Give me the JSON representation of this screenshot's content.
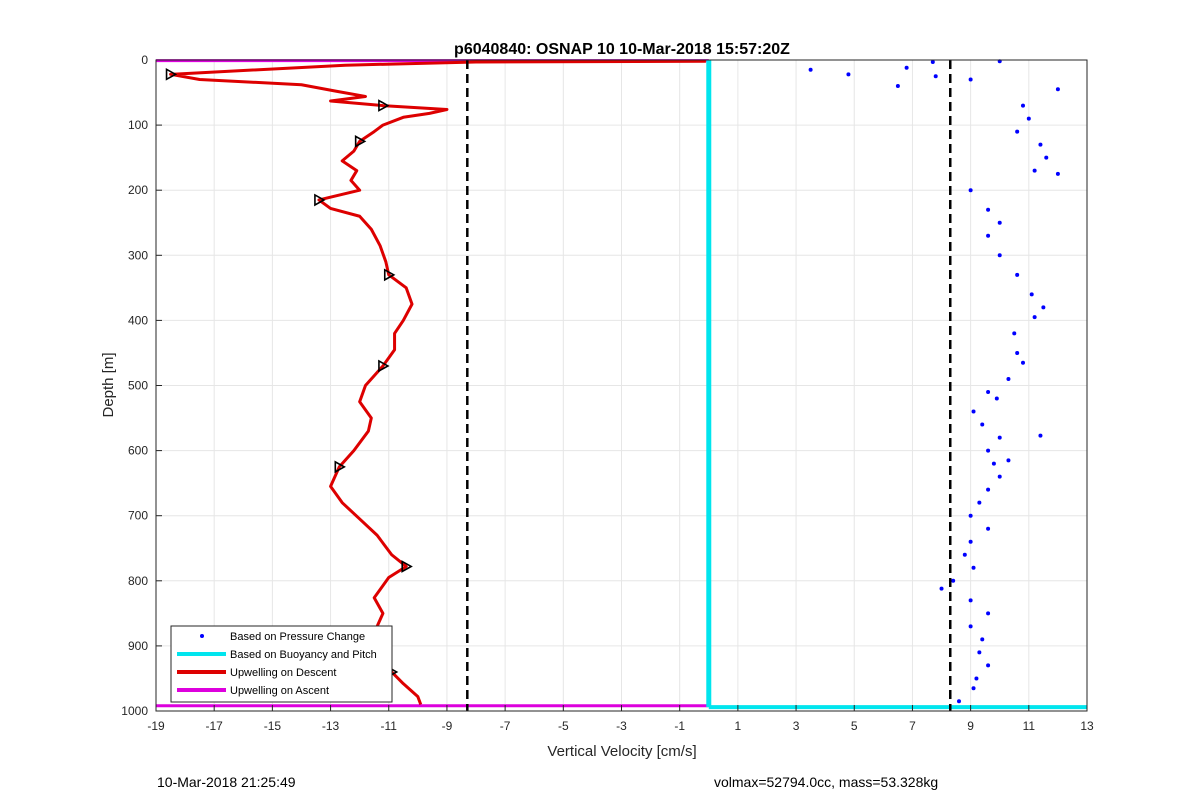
{
  "chart_data": {
    "type": "scatter",
    "title": "p6040840: OSNAP 10 10-Mar-2018 15:57:20Z",
    "xlabel": "Vertical Velocity [cm/s]",
    "ylabel": "Depth [m]",
    "xlim": [
      -19,
      13
    ],
    "ylim": [
      0,
      1000
    ],
    "y_reversed": true,
    "grid": true,
    "x_ticks": [
      -19,
      -17,
      -15,
      -13,
      -11,
      -9,
      -7,
      -5,
      -3,
      -1,
      1,
      3,
      5,
      7,
      9,
      11,
      13
    ],
    "x_tick_labels": [
      "-19",
      "-17",
      "-15",
      "-13",
      "-11",
      "-9",
      "-7",
      "-5",
      "-3",
      "-1",
      "1",
      "3",
      "5",
      "7",
      "9",
      "11",
      "13"
    ],
    "y_ticks": [
      0,
      100,
      200,
      300,
      400,
      500,
      600,
      700,
      800,
      900,
      1000
    ],
    "y_tick_labels": [
      "0",
      "100",
      "200",
      "300",
      "400",
      "500",
      "600",
      "700",
      "800",
      "900",
      "1000"
    ],
    "legend": {
      "placement": "bottom-left",
      "entries": [
        {
          "label": "Based on Pressure Change",
          "color": "#0000ff",
          "marker": "dot"
        },
        {
          "label": "Based on Buoyancy and Pitch",
          "color": "#00e5ee",
          "marker": "line"
        },
        {
          "label": "Upwelling on Descent",
          "color": "#dd0000",
          "marker": "line"
        },
        {
          "label": "Upwelling on Ascent",
          "color": "#dd00dd",
          "marker": "line"
        }
      ]
    },
    "reference_lines": [
      {
        "x": -8.3,
        "style": "dashed",
        "color": "#000000"
      },
      {
        "x": 8.3,
        "style": "dashed",
        "color": "#000000"
      }
    ],
    "series": [
      {
        "name": "Upwelling on Descent",
        "color": "#dd0000",
        "points": [
          [
            -0.1,
            2
          ],
          [
            -8.0,
            3
          ],
          [
            -12.5,
            8
          ],
          [
            -18.5,
            22
          ],
          [
            -17.5,
            30
          ],
          [
            -14.0,
            38
          ],
          [
            -12.8,
            48
          ],
          [
            -11.8,
            56
          ],
          [
            -13.0,
            63
          ],
          [
            -11.2,
            70
          ],
          [
            -9.0,
            76
          ],
          [
            -9.6,
            82
          ],
          [
            -10.5,
            88
          ],
          [
            -11.2,
            100
          ],
          [
            -11.5,
            110
          ],
          [
            -12.0,
            125
          ],
          [
            -12.2,
            140
          ],
          [
            -12.6,
            155
          ],
          [
            -12.1,
            170
          ],
          [
            -12.3,
            185
          ],
          [
            -12.0,
            200
          ],
          [
            -13.4,
            215
          ],
          [
            -13.0,
            228
          ],
          [
            -12.0,
            240
          ],
          [
            -11.6,
            260
          ],
          [
            -11.3,
            285
          ],
          [
            -11.1,
            310
          ],
          [
            -11.0,
            330
          ],
          [
            -10.4,
            350
          ],
          [
            -10.2,
            375
          ],
          [
            -10.5,
            400
          ],
          [
            -10.8,
            420
          ],
          [
            -10.8,
            445
          ],
          [
            -11.2,
            470
          ],
          [
            -11.8,
            500
          ],
          [
            -12.0,
            525
          ],
          [
            -11.6,
            550
          ],
          [
            -11.7,
            570
          ],
          [
            -12.2,
            600
          ],
          [
            -12.7,
            625
          ],
          [
            -13.0,
            655
          ],
          [
            -12.6,
            680
          ],
          [
            -12.0,
            705
          ],
          [
            -11.4,
            730
          ],
          [
            -10.9,
            760
          ],
          [
            -10.4,
            778
          ],
          [
            -11.0,
            795
          ],
          [
            -11.5,
            826
          ],
          [
            -11.2,
            850
          ],
          [
            -11.5,
            880
          ],
          [
            -11.0,
            915
          ],
          [
            -10.9,
            940
          ],
          [
            -10.5,
            958
          ],
          [
            -10.0,
            978
          ],
          [
            -9.9,
            990
          ]
        ]
      },
      {
        "name": "Based on Pressure Change",
        "color": "#0000ff",
        "points": [
          [
            10.8,
            70
          ],
          [
            11.0,
            90
          ],
          [
            10.6,
            110
          ],
          [
            11.4,
            130
          ],
          [
            11.6,
            150
          ],
          [
            11.2,
            170
          ],
          [
            12.0,
            175
          ],
          [
            9.0,
            200
          ],
          [
            9.6,
            230
          ],
          [
            10.0,
            250
          ],
          [
            9.6,
            270
          ],
          [
            10.0,
            300
          ],
          [
            10.6,
            330
          ],
          [
            11.1,
            360
          ],
          [
            11.5,
            380
          ],
          [
            11.2,
            395
          ],
          [
            10.5,
            420
          ],
          [
            10.6,
            450
          ],
          [
            10.8,
            465
          ],
          [
            10.3,
            490
          ],
          [
            9.6,
            510
          ],
          [
            9.9,
            520
          ],
          [
            9.1,
            540
          ],
          [
            9.4,
            560
          ],
          [
            10.0,
            580
          ],
          [
            11.4,
            577
          ],
          [
            9.6,
            600
          ],
          [
            10.3,
            615
          ],
          [
            9.8,
            620
          ],
          [
            10.0,
            640
          ],
          [
            9.6,
            660
          ],
          [
            9.3,
            680
          ],
          [
            9.0,
            700
          ],
          [
            9.6,
            720
          ],
          [
            9.0,
            740
          ],
          [
            8.8,
            760
          ],
          [
            9.1,
            780
          ],
          [
            8.4,
            800
          ],
          [
            8.0,
            812
          ],
          [
            9.0,
            830
          ],
          [
            9.6,
            850
          ],
          [
            9.0,
            870
          ],
          [
            9.4,
            890
          ],
          [
            9.3,
            910
          ],
          [
            9.6,
            930
          ],
          [
            9.2,
            950
          ],
          [
            9.1,
            965
          ],
          [
            8.6,
            985
          ],
          [
            7.8,
            25
          ],
          [
            9.0,
            30
          ],
          [
            6.8,
            12
          ],
          [
            7.7,
            3
          ],
          [
            10.0,
            2
          ],
          [
            3.5,
            15
          ],
          [
            4.8,
            22
          ],
          [
            6.5,
            40
          ],
          [
            12.0,
            45
          ]
        ]
      },
      {
        "name": "Based on Buoyancy and Pitch",
        "color": "#00e5ee",
        "points": [
          [
            0.0,
            0
          ],
          [
            0.0,
            500
          ],
          [
            0.0,
            994
          ],
          [
            13.0,
            994
          ]
        ]
      },
      {
        "name": "Upwelling on Ascent",
        "color": "#dd00dd",
        "points": [
          [
            -19.0,
            1
          ],
          [
            0.0,
            1
          ],
          [
            -19.0,
            992
          ],
          [
            0.0,
            992
          ]
        ]
      }
    ]
  },
  "footer": {
    "left_text": "10-Mar-2018 21:25:49",
    "right_text": "volmax=52794.0cc, mass=53.328kg"
  }
}
